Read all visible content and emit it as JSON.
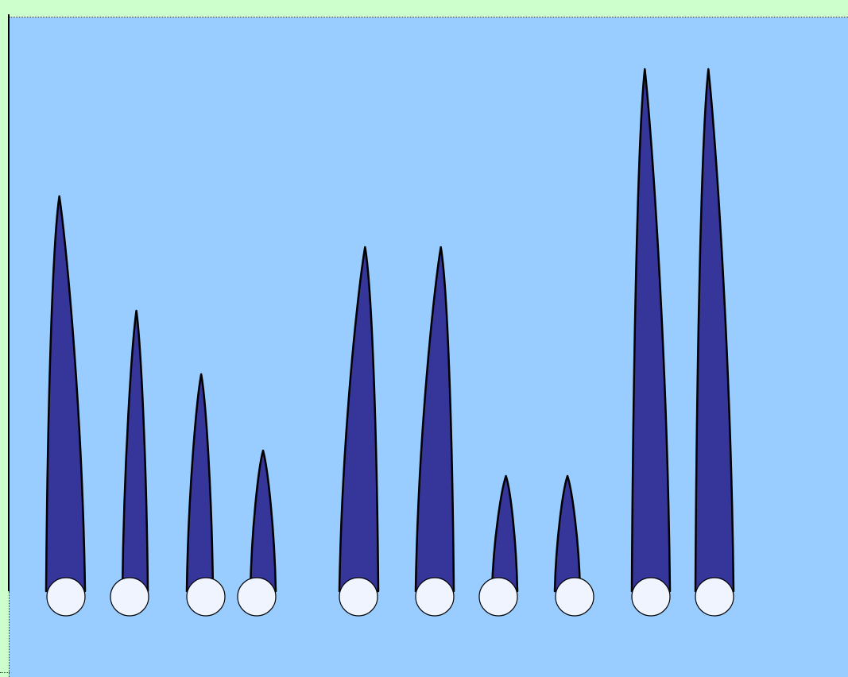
{
  "colors": {
    "background": "#ccffcc",
    "canvas": "#99ccff",
    "spike_fill": "#35359a",
    "spike_stroke": "#000000",
    "ball_fill": "#f0f4ff"
  },
  "chart_data": {
    "type": "spike-diagram",
    "spikes": [
      {
        "height": 497,
        "lean": "left"
      },
      {
        "height": 353,
        "lean": "right"
      },
      {
        "height": 273,
        "lean": "right"
      },
      {
        "height": 177,
        "lean": "left"
      },
      {
        "height": 433,
        "lean": "right"
      },
      {
        "height": 433,
        "lean": "right"
      },
      {
        "height": 145,
        "lean": "right"
      },
      {
        "height": 145,
        "lean": "left"
      },
      {
        "height": 657,
        "lean": "left"
      },
      {
        "height": 657,
        "lean": "left"
      }
    ]
  }
}
